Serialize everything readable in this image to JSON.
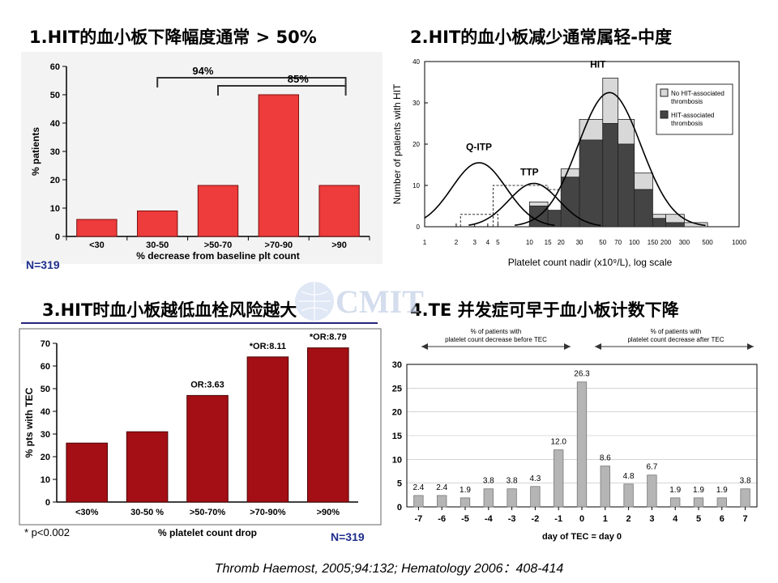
{
  "titles": {
    "t1": "1.HIT的血小板下降幅度通常 > 50%",
    "t2": "2.HIT的血小板减少通常属轻-中度",
    "t3": "3.HIT时血小板越低血栓风险越大",
    "t4": "4.TE 并发症可早于血小板计数下降"
  },
  "watermark": "CMIT",
  "citation": "Thromb Haemost, 2005;94:132;  Hematology 2006：408-414",
  "colors": {
    "red": "#ee3b3b",
    "darkred": "#a30f14",
    "gray": "#b5b5b5",
    "navy": "#1f2e8c",
    "darkgray": "#444444",
    "lightgray": "#d8d8d8"
  },
  "chart_data": [
    {
      "type": "bar",
      "categories": [
        "<30",
        "30-50",
        ">50-70",
        ">70-90",
        ">90"
      ],
      "values": [
        6,
        9,
        18,
        50,
        18
      ],
      "ylabel": "% patients",
      "xlabel": "% decrease from baseline plt count",
      "ylim": [
        0,
        60
      ],
      "yticks": [
        0,
        10,
        20,
        30,
        40,
        50,
        60
      ],
      "brackets": [
        {
          "label": "94%",
          "from": 1,
          "to": 4
        },
        {
          "label": "85%",
          "from": 2,
          "to": 4
        }
      ],
      "note": "N=319"
    },
    {
      "type": "bar",
      "ylabel": "Number of patients with HIT",
      "xlabel": "Platelet count nadir (x10⁹/L), log scale",
      "ylim": [
        0,
        40
      ],
      "yticks": [
        0,
        10,
        20,
        30,
        40
      ],
      "xticks": [
        "1",
        "2",
        "3",
        "4",
        "5",
        "10",
        "15",
        "20",
        "30",
        "50",
        "70",
        "100",
        "150",
        "200",
        "300",
        "500",
        "1000"
      ],
      "curve_labels": [
        "Q-ITP",
        "TTP",
        "HIT"
      ],
      "legend": [
        "No HIT-associated thrombosis",
        "HIT-associated thrombosis"
      ],
      "legend_position": "top-right",
      "bins": [
        {
          "from": 10,
          "to": 15,
          "thrombosis": 5,
          "no_thrombosis": 1
        },
        {
          "from": 15,
          "to": 20,
          "thrombosis": 4,
          "no_thrombosis": 0
        },
        {
          "from": 20,
          "to": 30,
          "thrombosis": 12,
          "no_thrombosis": 2
        },
        {
          "from": 30,
          "to": 50,
          "thrombosis": 21,
          "no_thrombosis": 5
        },
        {
          "from": 50,
          "to": 70,
          "thrombosis": 25,
          "no_thrombosis": 11
        },
        {
          "from": 70,
          "to": 100,
          "thrombosis": 20,
          "no_thrombosis": 6
        },
        {
          "from": 100,
          "to": 150,
          "thrombosis": 9,
          "no_thrombosis": 4
        },
        {
          "from": 150,
          "to": 200,
          "thrombosis": 2,
          "no_thrombosis": 1
        },
        {
          "from": 200,
          "to": 300,
          "thrombosis": 1,
          "no_thrombosis": 2
        },
        {
          "from": 300,
          "to": 500,
          "thrombosis": 0,
          "no_thrombosis": 1
        }
      ],
      "curves": [
        {
          "name": "Q-ITP",
          "peak_x": 3.3,
          "peak_y": 15.5,
          "log_sigma": 0.26
        },
        {
          "name": "TTP",
          "peak_x": 11,
          "peak_y": 10.5,
          "log_sigma": 0.24
        },
        {
          "name": "HIT",
          "peak_x": 58,
          "peak_y": 32.5,
          "log_sigma": 0.3
        }
      ]
    },
    {
      "type": "bar",
      "categories": [
        "<30%",
        "30-50 %",
        ">50-70%",
        ">70-90%",
        ">90%"
      ],
      "values": [
        26,
        31,
        47,
        64,
        68
      ],
      "bar_labels": [
        "",
        "",
        "OR:3.63",
        "*OR:8.11",
        "*OR:8.79"
      ],
      "ylabel": "% pts with TEC",
      "xlabel": "% platelet count drop",
      "ylim": [
        0,
        70
      ],
      "yticks": [
        0,
        10,
        20,
        30,
        40,
        50,
        60,
        70
      ],
      "footnote": "* p<0.002",
      "note": "N=319"
    },
    {
      "type": "bar",
      "categories": [
        "-7",
        "-6",
        "-5",
        "-4",
        "-3",
        "-2",
        "-1",
        "0",
        "1",
        "2",
        "3",
        "4",
        "5",
        "6",
        "7"
      ],
      "values": [
        2.4,
        2.4,
        1.9,
        3.8,
        3.8,
        4.3,
        12.0,
        26.3,
        8.6,
        4.8,
        6.7,
        1.9,
        1.9,
        1.9,
        3.8
      ],
      "bar_labels": [
        "2.4",
        "2.4",
        "1.9",
        "3.8",
        "3.8",
        "4.3",
        "12.0",
        "26.3",
        "8.6",
        "4.8",
        "6.7",
        "1.9",
        "1.9",
        "1.9",
        "3.8"
      ],
      "xlabel": "day of TEC = day 0",
      "ylim": [
        0,
        30
      ],
      "yticks": [
        0,
        5,
        10,
        15,
        20,
        25,
        30
      ],
      "header_left": [
        "% of patients with",
        "platelet count decrease before TEC"
      ],
      "header_right": [
        "% of patients with",
        "platelet count decrease after TEC"
      ]
    }
  ]
}
